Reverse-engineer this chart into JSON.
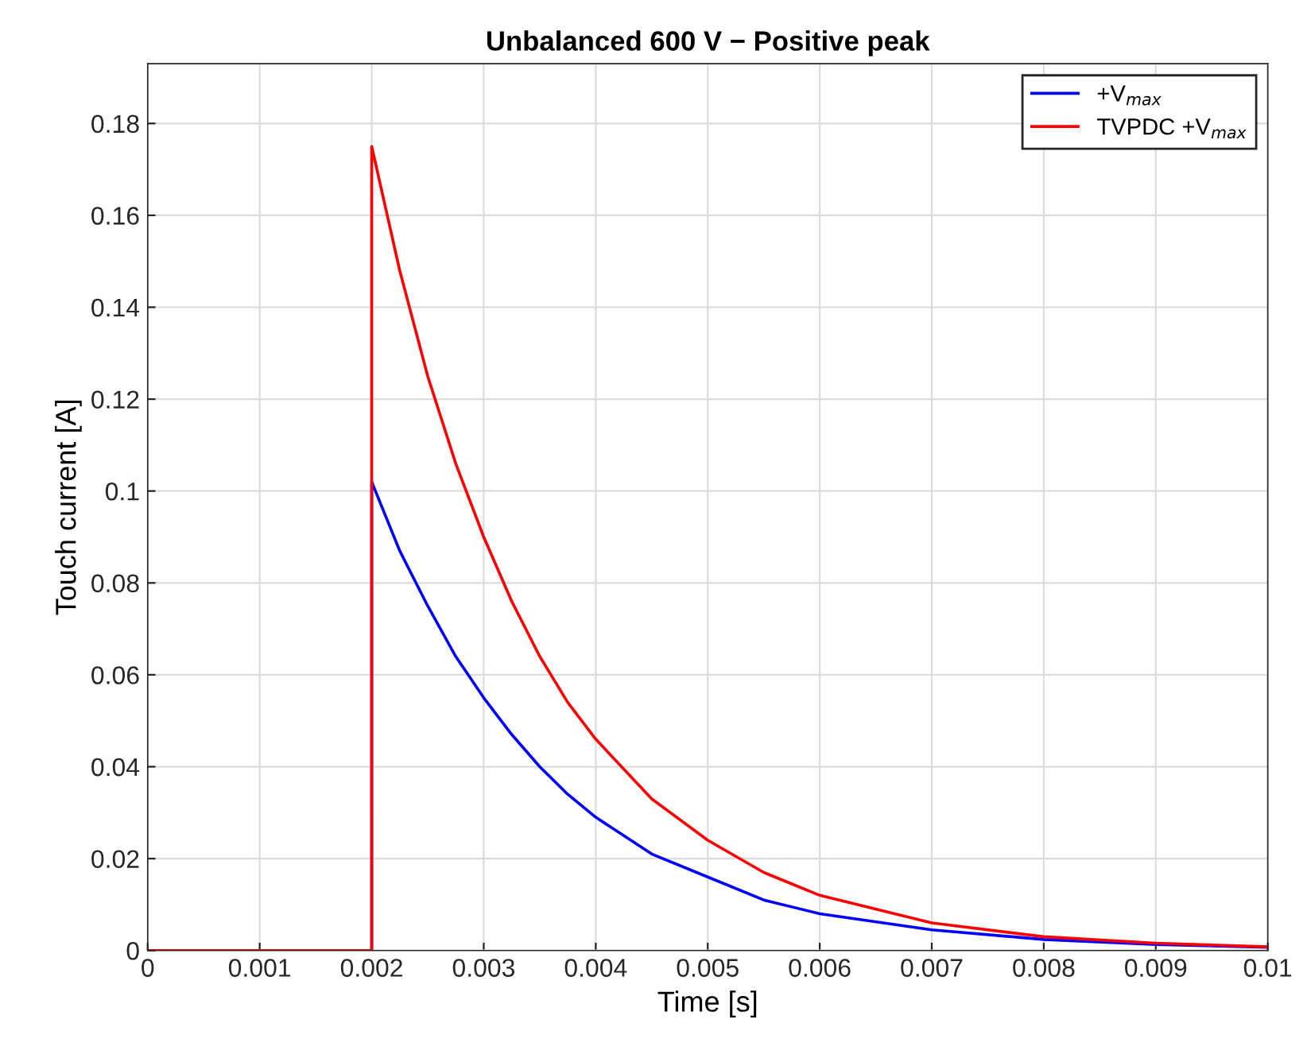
{
  "chart_data": {
    "type": "line",
    "title": "Unbalanced 600 V − Positive peak",
    "xlabel": "Time [s]",
    "ylabel": "Touch current [A]",
    "series": [
      {
        "name": "+V$_{max}$",
        "color": "#0000ff",
        "x": [
          0,
          0.002,
          0.002,
          0.00225,
          0.0025,
          0.00275,
          0.003,
          0.00325,
          0.0035,
          0.00375,
          0.004,
          0.0045,
          0.005,
          0.0055,
          0.006,
          0.007,
          0.008,
          0.009,
          0.01
        ],
        "values": [
          0,
          0,
          0.102,
          0.087,
          0.075,
          0.064,
          0.055,
          0.047,
          0.04,
          0.034,
          0.029,
          0.021,
          0.016,
          0.011,
          0.008,
          0.0045,
          0.0024,
          0.0013,
          0.0007
        ]
      },
      {
        "name": "TVPDC +V$_{max}$",
        "color": "#ff0000",
        "x": [
          0,
          0.002,
          0.002,
          0.00225,
          0.0025,
          0.00275,
          0.003,
          0.00325,
          0.0035,
          0.00375,
          0.004,
          0.0045,
          0.005,
          0.0055,
          0.006,
          0.007,
          0.008,
          0.009,
          0.01
        ],
        "values": [
          0,
          0,
          0.175,
          0.148,
          0.125,
          0.106,
          0.09,
          0.076,
          0.064,
          0.054,
          0.046,
          0.033,
          0.024,
          0.017,
          0.012,
          0.006,
          0.003,
          0.0016,
          0.0008
        ]
      }
    ],
    "xlim": [
      0,
      0.01
    ],
    "xticks": [
      0,
      0.001,
      0.002,
      0.003,
      0.004,
      0.005,
      0.006,
      0.007,
      0.008,
      0.009,
      0.01
    ],
    "ylim": [
      0,
      0.193
    ],
    "yticks": [
      0,
      0.02,
      0.04,
      0.06,
      0.08,
      0.1,
      0.12,
      0.14,
      0.16,
      0.18
    ],
    "grid": true,
    "legend": "top right"
  }
}
